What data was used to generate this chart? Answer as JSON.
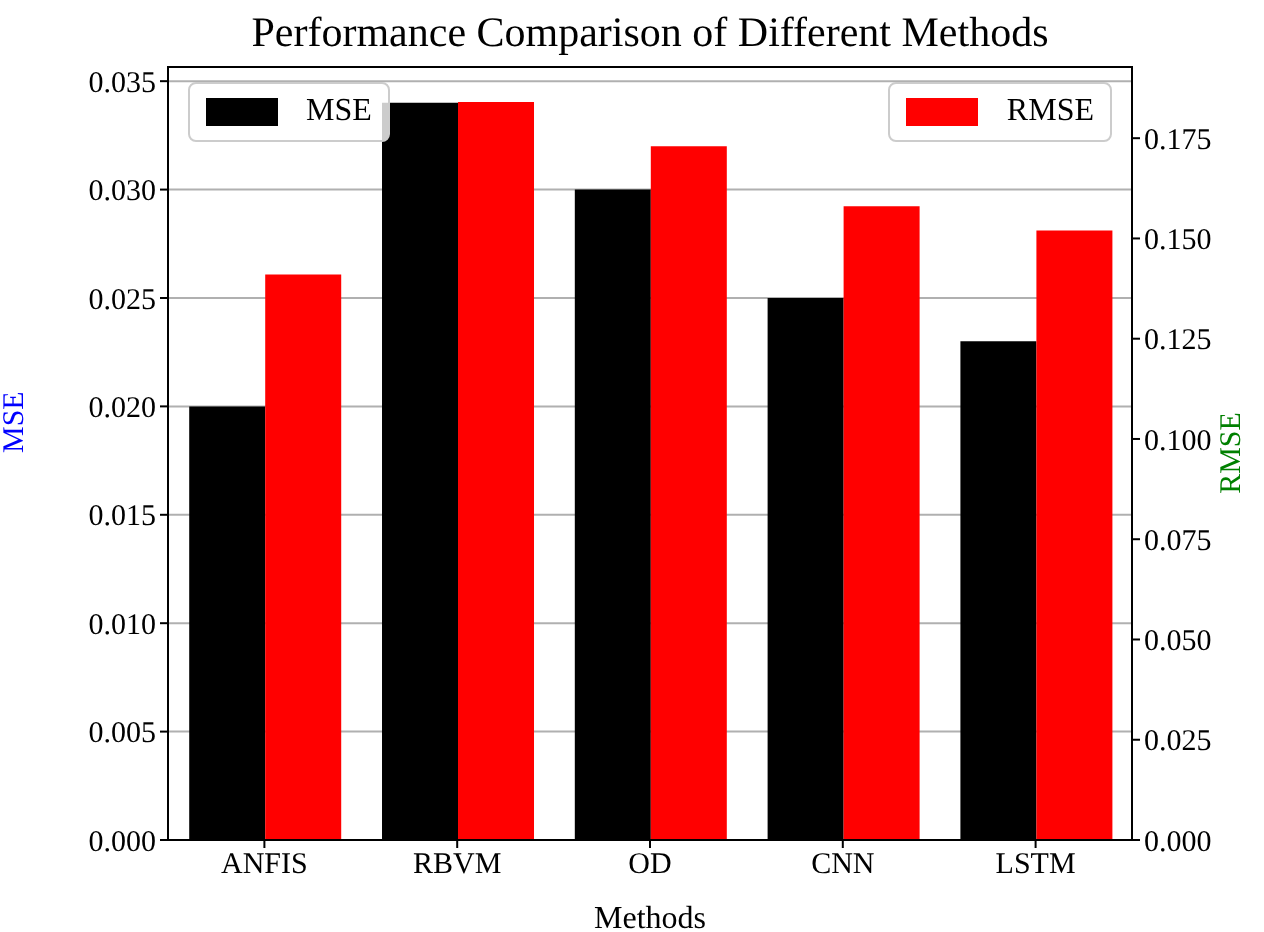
{
  "chart_data": {
    "type": "bar",
    "title": "Performance Comparison of Different Methods",
    "xlabel": "Methods",
    "ylabel": "MSE",
    "y2label": "RMSE",
    "categories": [
      "ANFIS",
      "RBVM",
      "OD",
      "CNN",
      "LSTM"
    ],
    "series": [
      {
        "name": "MSE",
        "color": "#000000",
        "values": [
          0.02,
          0.034,
          0.03,
          0.025,
          0.023
        ]
      },
      {
        "name": "RMSE",
        "color": "#ff0000",
        "axis": "y2",
        "values": [
          0.141,
          0.184,
          0.173,
          0.158,
          0.152
        ]
      }
    ],
    "ylim": [
      0,
      0.0357
    ],
    "yticks": [
      {
        "value": 0,
        "label": "0.000"
      },
      {
        "value": 0.005,
        "label": "0.005"
      },
      {
        "value": 0.01,
        "label": "0.010"
      },
      {
        "value": 0.015,
        "label": "0.015"
      },
      {
        "value": 0.02,
        "label": "0.020"
      },
      {
        "value": 0.025,
        "label": "0.025"
      },
      {
        "value": 0.03,
        "label": "0.030"
      },
      {
        "value": 0.035,
        "label": "0.035"
      }
    ],
    "y2lim": [
      0,
      0.193
    ],
    "y2ticks": [
      {
        "value": 0,
        "label": "0.000"
      },
      {
        "value": 0.025,
        "label": "0.025"
      },
      {
        "value": 0.05,
        "label": "0.050"
      },
      {
        "value": 0.075,
        "label": "0.075"
      },
      {
        "value": 0.1,
        "label": "0.100"
      },
      {
        "value": 0.125,
        "label": "0.125"
      },
      {
        "value": 0.15,
        "label": "0.150"
      },
      {
        "value": 0.175,
        "label": "0.175"
      }
    ],
    "grid": "y",
    "legend": "top"
  }
}
